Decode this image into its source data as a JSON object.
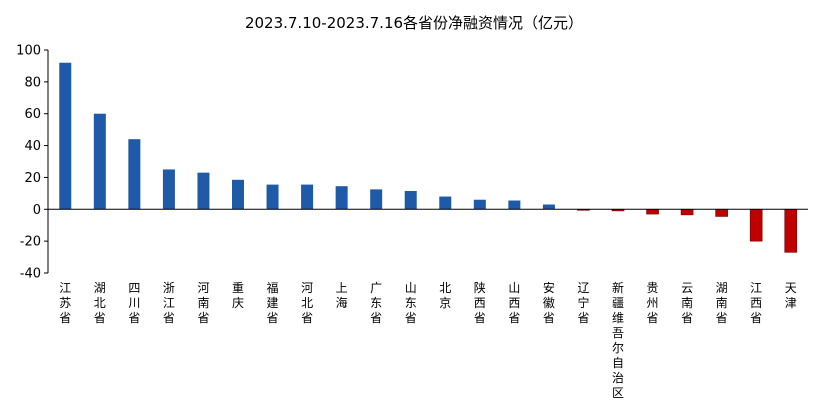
{
  "chart_data": {
    "type": "bar",
    "title": "2023.7.10-2023.7.16各省份净融资情况（亿元）",
    "xlabel": "",
    "ylabel": "",
    "ylim": [
      -40,
      100
    ],
    "yticks": [
      -40,
      -20,
      0,
      20,
      40,
      60,
      80,
      100
    ],
    "grid": false,
    "legend": "none",
    "colors": {
      "positive": "#1f5aa8",
      "negative": "#c00000",
      "axis": "#000000"
    },
    "categories": [
      "江苏省",
      "湖北省",
      "四川省",
      "浙江省",
      "河南省",
      "重庆",
      "福建省",
      "河北省",
      "上海",
      "广东省",
      "山东省",
      "北京",
      "陕西省",
      "山西省",
      "安徽省",
      "辽宁省",
      "新疆维吾尔自治区",
      "贵州省",
      "云南省",
      "湖南省",
      "江西省",
      "天津"
    ],
    "values": [
      92,
      60,
      44,
      25,
      23,
      18.5,
      15.5,
      15.5,
      14.5,
      12.5,
      11.5,
      8,
      6,
      5.5,
      3,
      -0.5,
      -1,
      -3,
      -3.5,
      -4.5,
      -20,
      -27
    ]
  }
}
